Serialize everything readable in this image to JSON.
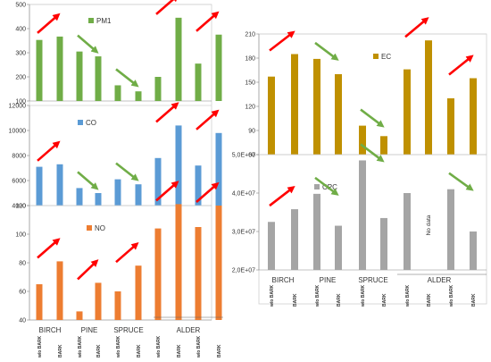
{
  "colors": {
    "PM1": "#70ad47",
    "CO": "#5b9bd5",
    "NO": "#ed7d31",
    "EC": "#bf9000",
    "CPC": "#a5a5a5",
    "arrow_up": "#ff0000",
    "arrow_down": "#70ad47"
  },
  "species": [
    "BIRCH",
    "PINE",
    "SPRUCE",
    "ALDER"
  ],
  "bar_labels": [
    "w/o BARK",
    "BARK",
    "w/o BARK",
    "BARK",
    "w/o BARK",
    "BARK",
    "w/o BARK",
    "BARK",
    "w/o BARK",
    "BARK"
  ],
  "chart_data": [
    {
      "type": "bar",
      "panel": "left-top",
      "title": "",
      "legend": "PM1",
      "legend_placement": "top-right",
      "ylim": [
        100,
        500
      ],
      "yticks": [
        "100",
        "200",
        "300",
        "400",
        "500"
      ],
      "series": [
        {
          "name": "PM1",
          "values": [
            353,
            367,
            305,
            285,
            165,
            140,
            200,
            445,
            255,
            375
          ]
        }
      ],
      "arrows": [
        {
          "from": 0,
          "to": 1,
          "direction": "up",
          "color": "red"
        },
        {
          "from": 2,
          "to": 3,
          "direction": "down",
          "color": "green"
        },
        {
          "from": 4,
          "to": 5,
          "direction": "down",
          "color": "green"
        },
        {
          "from": 6,
          "to": 7,
          "direction": "up",
          "color": "red"
        },
        {
          "from": 8,
          "to": 9,
          "direction": "up",
          "color": "red"
        }
      ]
    },
    {
      "type": "bar",
      "panel": "left-middle",
      "title": "",
      "legend": "CO",
      "legend_placement": "top-left",
      "ylim": [
        4000,
        12000
      ],
      "yticks": [
        "4000",
        "6000",
        "8000",
        "10000",
        "12000"
      ],
      "series": [
        {
          "name": "CO",
          "values": [
            7100,
            7300,
            5400,
            5000,
            6100,
            5700,
            7800,
            10400,
            7200,
            9800
          ]
        }
      ],
      "arrows": [
        {
          "from": 0,
          "to": 1,
          "direction": "up",
          "color": "red"
        },
        {
          "from": 2,
          "to": 3,
          "direction": "down",
          "color": "green"
        },
        {
          "from": 4,
          "to": 5,
          "direction": "down",
          "color": "green"
        },
        {
          "from": 6,
          "to": 7,
          "direction": "up",
          "color": "red"
        },
        {
          "from": 8,
          "to": 9,
          "direction": "up",
          "color": "red"
        }
      ]
    },
    {
      "type": "bar",
      "panel": "left-bottom",
      "title": "",
      "legend": "NO",
      "legend_placement": "top-center",
      "ylim": [
        40,
        120
      ],
      "yticks": [
        "40",
        "60",
        "80",
        "100",
        "120"
      ],
      "series": [
        {
          "name": "NO",
          "values": [
            65,
            81,
            46,
            66,
            60,
            78,
            104,
            121,
            105,
            120
          ]
        }
      ],
      "arrows": [
        {
          "from": 0,
          "to": 1,
          "direction": "up",
          "color": "red"
        },
        {
          "from": 2,
          "to": 3,
          "direction": "up",
          "color": "red"
        },
        {
          "from": 4,
          "to": 5,
          "direction": "up",
          "color": "red"
        },
        {
          "from": 6,
          "to": 7,
          "direction": "up",
          "color": "red"
        },
        {
          "from": 8,
          "to": 9,
          "direction": "up",
          "color": "red"
        }
      ]
    },
    {
      "type": "bar",
      "panel": "right-top",
      "title": "",
      "legend": "EC",
      "legend_placement": "top-right",
      "ylim": [
        60,
        210
      ],
      "yticks": [
        "60",
        "90",
        "120",
        "150",
        "180",
        "210"
      ],
      "series": [
        {
          "name": "EC",
          "values": [
            157,
            185,
            179,
            160,
            96,
            83,
            166,
            202,
            130,
            155
          ]
        }
      ],
      "arrows": [
        {
          "from": 0,
          "to": 1,
          "direction": "up",
          "color": "red"
        },
        {
          "from": 2,
          "to": 3,
          "direction": "down",
          "color": "green"
        },
        {
          "from": 4,
          "to": 5,
          "direction": "down",
          "color": "green"
        },
        {
          "from": 6,
          "to": 7,
          "direction": "up",
          "color": "red"
        },
        {
          "from": 8,
          "to": 9,
          "direction": "up",
          "color": "red"
        }
      ]
    },
    {
      "type": "bar",
      "panel": "right-bottom",
      "title": "",
      "legend": "CPC",
      "legend_placement": "top-center",
      "ylim": [
        20000000,
        50000000
      ],
      "yticks": [
        "2,0E+07",
        "3,0E+07",
        "4,0E+07",
        "5,0E+07"
      ],
      "series": [
        {
          "name": "CPC",
          "values": [
            32500000,
            35800000,
            39800000,
            31500000,
            48500000,
            33500000,
            40000000,
            null,
            41000000,
            30000000
          ]
        }
      ],
      "annotations": [
        {
          "text": "No data",
          "bar_index": 7
        }
      ],
      "arrows": [
        {
          "from": 0,
          "to": 1,
          "direction": "up",
          "color": "red"
        },
        {
          "from": 2,
          "to": 3,
          "direction": "down",
          "color": "green"
        },
        {
          "from": 4,
          "to": 5,
          "direction": "down",
          "color": "green"
        },
        {
          "from": 8,
          "to": 9,
          "direction": "down",
          "color": "green"
        }
      ]
    }
  ]
}
